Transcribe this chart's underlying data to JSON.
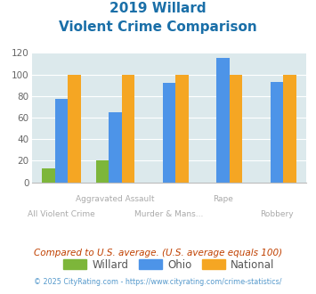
{
  "title_line1": "2019 Willard",
  "title_line2": "Violent Crime Comparison",
  "categories": [
    "All Violent Crime",
    "Aggravated Assault",
    "Murder & Mans...",
    "Rape",
    "Robbery"
  ],
  "top_labels": [
    "",
    "Aggravated Assault",
    "",
    "Rape",
    ""
  ],
  "bottom_labels": [
    "All Violent Crime",
    "",
    "Murder & Mans...",
    "",
    "Robbery"
  ],
  "willard": [
    13,
    20,
    0,
    0,
    0
  ],
  "ohio": [
    77,
    65,
    92,
    115,
    93
  ],
  "national": [
    100,
    100,
    100,
    100,
    100
  ],
  "willard_color": "#7db63a",
  "ohio_color": "#4d94e8",
  "national_color": "#f5a623",
  "ylim": [
    0,
    120
  ],
  "yticks": [
    0,
    20,
    40,
    60,
    80,
    100,
    120
  ],
  "bg_color": "#dce9ec",
  "title_color": "#1a6fa8",
  "label_color": "#aaaaaa",
  "footer_text": "Compared to U.S. average. (U.S. average equals 100)",
  "copyright_text": "© 2025 CityRating.com - https://www.cityrating.com/crime-statistics/",
  "legend_labels": [
    "Willard",
    "Ohio",
    "National"
  ]
}
